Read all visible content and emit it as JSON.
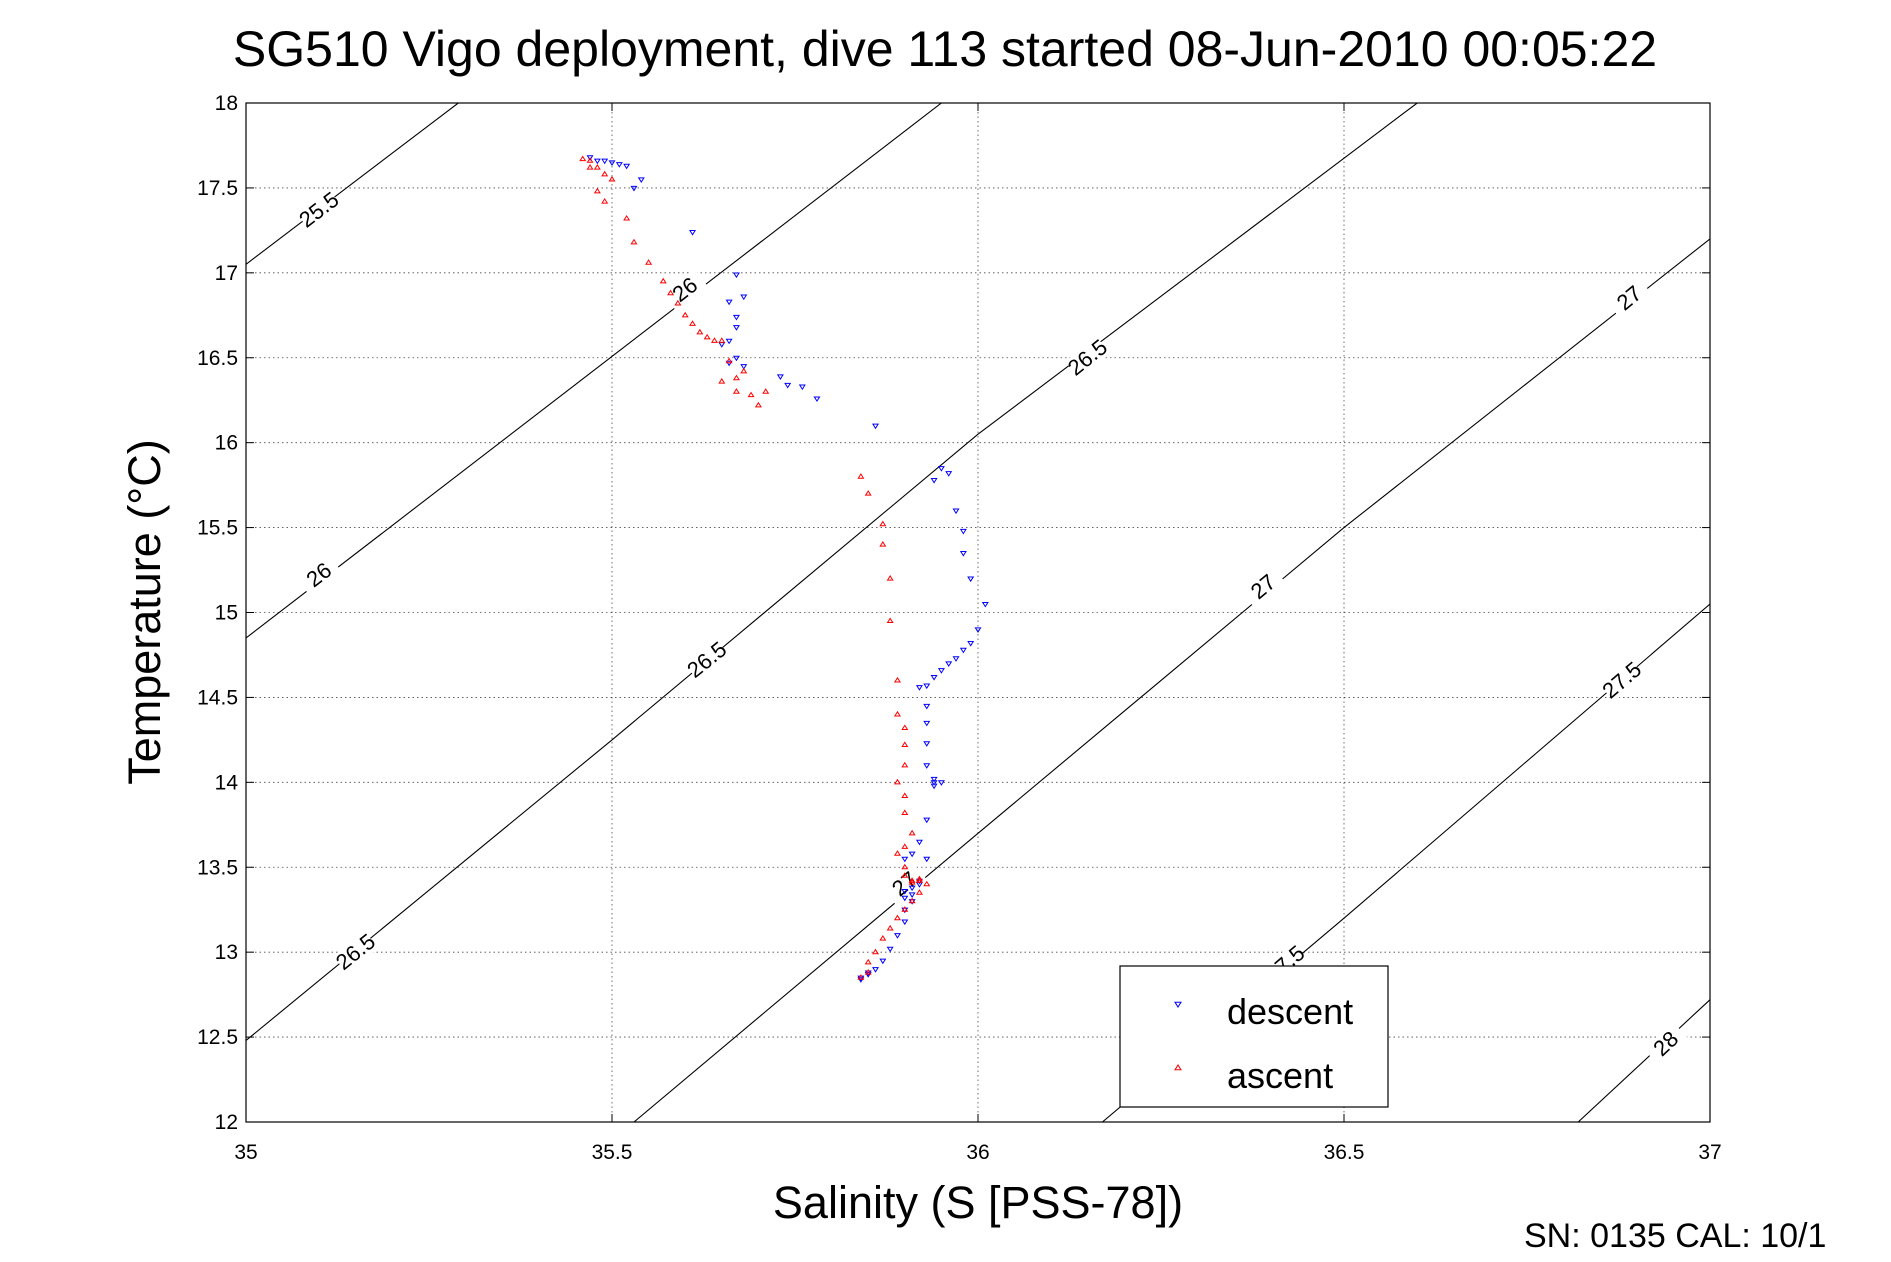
{
  "chart_data": {
    "type": "scatter",
    "title": "SG510 Vigo deployment, dive 113 started 08-Jun-2010 00:05:22",
    "xlabel": "Salinity (S [PSS-78])",
    "ylabel": "Temperature (°C)",
    "xlim": [
      35,
      37
    ],
    "ylim": [
      12,
      18
    ],
    "xticks": [
      35,
      35.5,
      36,
      36.5,
      37
    ],
    "xtick_labels": [
      "35",
      "35.5",
      "36",
      "36.5",
      "37"
    ],
    "yticks": [
      12,
      12.5,
      13,
      13.5,
      14,
      14.5,
      15,
      15.5,
      16,
      16.5,
      17,
      17.5,
      18
    ],
    "ytick_labels": [
      "12",
      "12.5",
      "13",
      "13.5",
      "14",
      "14.5",
      "15",
      "15.5",
      "16",
      "16.5",
      "17",
      "17.5",
      "18"
    ],
    "grid": true,
    "legend_position": "bottom-right",
    "footer": "SN: 0135  CAL: 10/1",
    "colors": {
      "descent": "#0000ff",
      "ascent": "#ff0000",
      "contour": "#000000"
    },
    "contours": [
      {
        "level": "25.5",
        "line": [
          [
            35.0,
            17.05
          ],
          [
            35.29,
            18.0
          ]
        ],
        "labels": [
          [
            35.1,
            17.37,
            "25.5"
          ]
        ]
      },
      {
        "level": "26",
        "line": [
          [
            35.0,
            14.85
          ],
          [
            35.95,
            18.0
          ]
        ],
        "labels": [
          [
            35.1,
            15.22,
            "26"
          ],
          [
            35.6,
            16.9,
            "26"
          ]
        ]
      },
      {
        "level": "26.5",
        "line": [
          [
            35.0,
            12.48
          ],
          [
            35.5,
            14.25
          ],
          [
            36.0,
            16.05
          ],
          [
            36.6,
            18.0
          ]
        ],
        "labels": [
          [
            35.15,
            13.0,
            "26.5"
          ],
          [
            35.63,
            14.72,
            "26.5"
          ],
          [
            36.15,
            16.5,
            "26.5"
          ]
        ]
      },
      {
        "level": "27",
        "line": [
          [
            35.53,
            12.0
          ],
          [
            36.0,
            13.7
          ],
          [
            36.5,
            15.5
          ],
          [
            37.0,
            17.2
          ]
        ],
        "labels": [
          [
            35.9,
            13.4,
            "27"
          ],
          [
            36.39,
            15.15,
            "27"
          ],
          [
            36.89,
            16.85,
            "27"
          ]
        ]
      },
      {
        "level": "27.5",
        "line": [
          [
            36.17,
            12.0
          ],
          [
            36.5,
            13.2
          ],
          [
            37.0,
            15.05
          ]
        ],
        "labels": [
          [
            36.42,
            12.93,
            "27.5"
          ],
          [
            36.88,
            14.6,
            "27.5"
          ]
        ]
      },
      {
        "level": "28",
        "line": [
          [
            36.82,
            12.0
          ],
          [
            37.0,
            12.72
          ]
        ],
        "labels": [
          [
            36.94,
            12.46,
            "28"
          ]
        ]
      }
    ],
    "series": [
      {
        "name": "descent",
        "marker": "triangle-down",
        "x": [
          35.47,
          35.48,
          35.49,
          35.5,
          35.51,
          35.52,
          35.54,
          35.53,
          35.61,
          35.67,
          35.68,
          35.66,
          35.67,
          35.67,
          35.66,
          35.65,
          35.68,
          35.67,
          35.66,
          35.73,
          35.74,
          35.76,
          35.78,
          35.86,
          35.95,
          35.96,
          35.94,
          35.97,
          35.98,
          35.98,
          35.99,
          36.01,
          36.0,
          35.99,
          35.98,
          35.97,
          35.96,
          35.95,
          35.94,
          35.93,
          35.92,
          35.93,
          35.93,
          35.93,
          35.93,
          35.94,
          35.94,
          35.94,
          35.95,
          35.93,
          35.92,
          35.91,
          35.9,
          35.93,
          35.92,
          35.92,
          35.91,
          35.9,
          35.91,
          35.9,
          35.91,
          35.9,
          35.9,
          35.89,
          35.88,
          35.87,
          35.86,
          35.85,
          35.84,
          35.84,
          35.85
        ],
        "y": [
          17.68,
          17.66,
          17.66,
          17.65,
          17.64,
          17.63,
          17.55,
          17.5,
          17.24,
          16.99,
          16.86,
          16.83,
          16.74,
          16.68,
          16.6,
          16.58,
          16.45,
          16.5,
          16.47,
          16.39,
          16.34,
          16.33,
          16.26,
          16.1,
          15.85,
          15.82,
          15.78,
          15.6,
          15.48,
          15.35,
          15.2,
          15.05,
          14.9,
          14.82,
          14.78,
          14.73,
          14.7,
          14.66,
          14.62,
          14.57,
          14.56,
          14.45,
          14.35,
          14.23,
          14.1,
          14.02,
          14.0,
          13.98,
          14.0,
          13.78,
          13.65,
          13.58,
          13.55,
          13.55,
          13.42,
          13.4,
          13.38,
          13.36,
          13.34,
          13.32,
          13.3,
          13.25,
          13.18,
          13.1,
          13.02,
          12.95,
          12.9,
          12.87,
          12.85,
          12.84,
          12.88
        ]
      },
      {
        "name": "ascent",
        "marker": "triangle-up",
        "x": [
          35.46,
          35.47,
          35.48,
          35.49,
          35.5,
          35.47,
          35.48,
          35.49,
          35.52,
          35.53,
          35.55,
          35.57,
          35.58,
          35.59,
          35.6,
          35.61,
          35.62,
          35.63,
          35.64,
          35.65,
          35.66,
          35.68,
          35.67,
          35.65,
          35.67,
          35.69,
          35.7,
          35.71,
          35.84,
          35.85,
          35.87,
          35.87,
          35.88,
          35.88,
          35.89,
          35.89,
          35.9,
          35.9,
          35.9,
          35.89,
          35.9,
          35.9,
          35.91,
          35.9,
          35.89,
          35.9,
          35.9,
          35.91,
          35.91,
          35.92,
          35.92,
          35.93,
          35.92,
          35.91,
          35.9,
          35.89,
          35.88,
          35.87,
          35.86,
          35.85,
          35.85,
          35.84
        ],
        "y": [
          17.67,
          17.66,
          17.62,
          17.58,
          17.55,
          17.62,
          17.48,
          17.42,
          17.32,
          17.18,
          17.06,
          16.95,
          16.88,
          16.82,
          16.75,
          16.7,
          16.65,
          16.62,
          16.6,
          16.6,
          16.48,
          16.42,
          16.38,
          16.36,
          16.3,
          16.28,
          16.22,
          16.3,
          15.8,
          15.7,
          15.52,
          15.4,
          15.2,
          14.95,
          14.6,
          14.4,
          14.32,
          14.22,
          14.1,
          14.0,
          13.92,
          13.82,
          13.7,
          13.62,
          13.58,
          13.5,
          13.45,
          13.42,
          13.41,
          13.42,
          13.43,
          13.4,
          13.35,
          13.3,
          13.25,
          13.2,
          13.14,
          13.08,
          13.0,
          12.94,
          12.88,
          12.85
        ]
      }
    ]
  }
}
